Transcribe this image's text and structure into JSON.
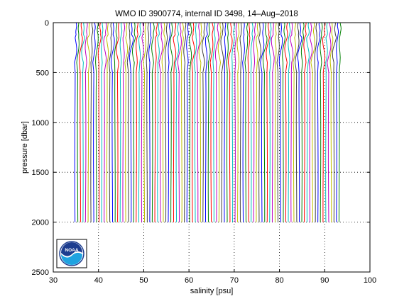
{
  "chart_data": {
    "type": "line",
    "title": "WMO ID 3900774, internal ID 3498, 14–Aug–2018",
    "xlabel": "salinity [psu]",
    "ylabel": "pressure [dbar]",
    "xlim": [
      30,
      100
    ],
    "ylim": [
      0,
      2500
    ],
    "y_reversed": true,
    "x_ticks": [
      "30",
      "40",
      "50",
      "60",
      "70",
      "80",
      "90",
      "100"
    ],
    "y_ticks": [
      "0",
      "500",
      "1000",
      "1500",
      "2000",
      "2500"
    ],
    "grid": true,
    "profile_series": {
      "count": 100,
      "first_deep_salinity": 34.8,
      "last_deep_salinity": 93.4,
      "offset_per_profile": 0.59,
      "surface_deviation": 0.3,
      "max_pressure": 2000,
      "colors": [
        "#0000ff",
        "#008000",
        "#ff0000",
        "#00bfbf",
        "#bf00bf",
        "#bfbf00",
        "#404040"
      ]
    }
  },
  "logo": {
    "text": "NOAA",
    "colors": {
      "dark_blue": "#1d3d8f",
      "light_blue": "#1fa3e0",
      "white": "#ffffff"
    }
  }
}
